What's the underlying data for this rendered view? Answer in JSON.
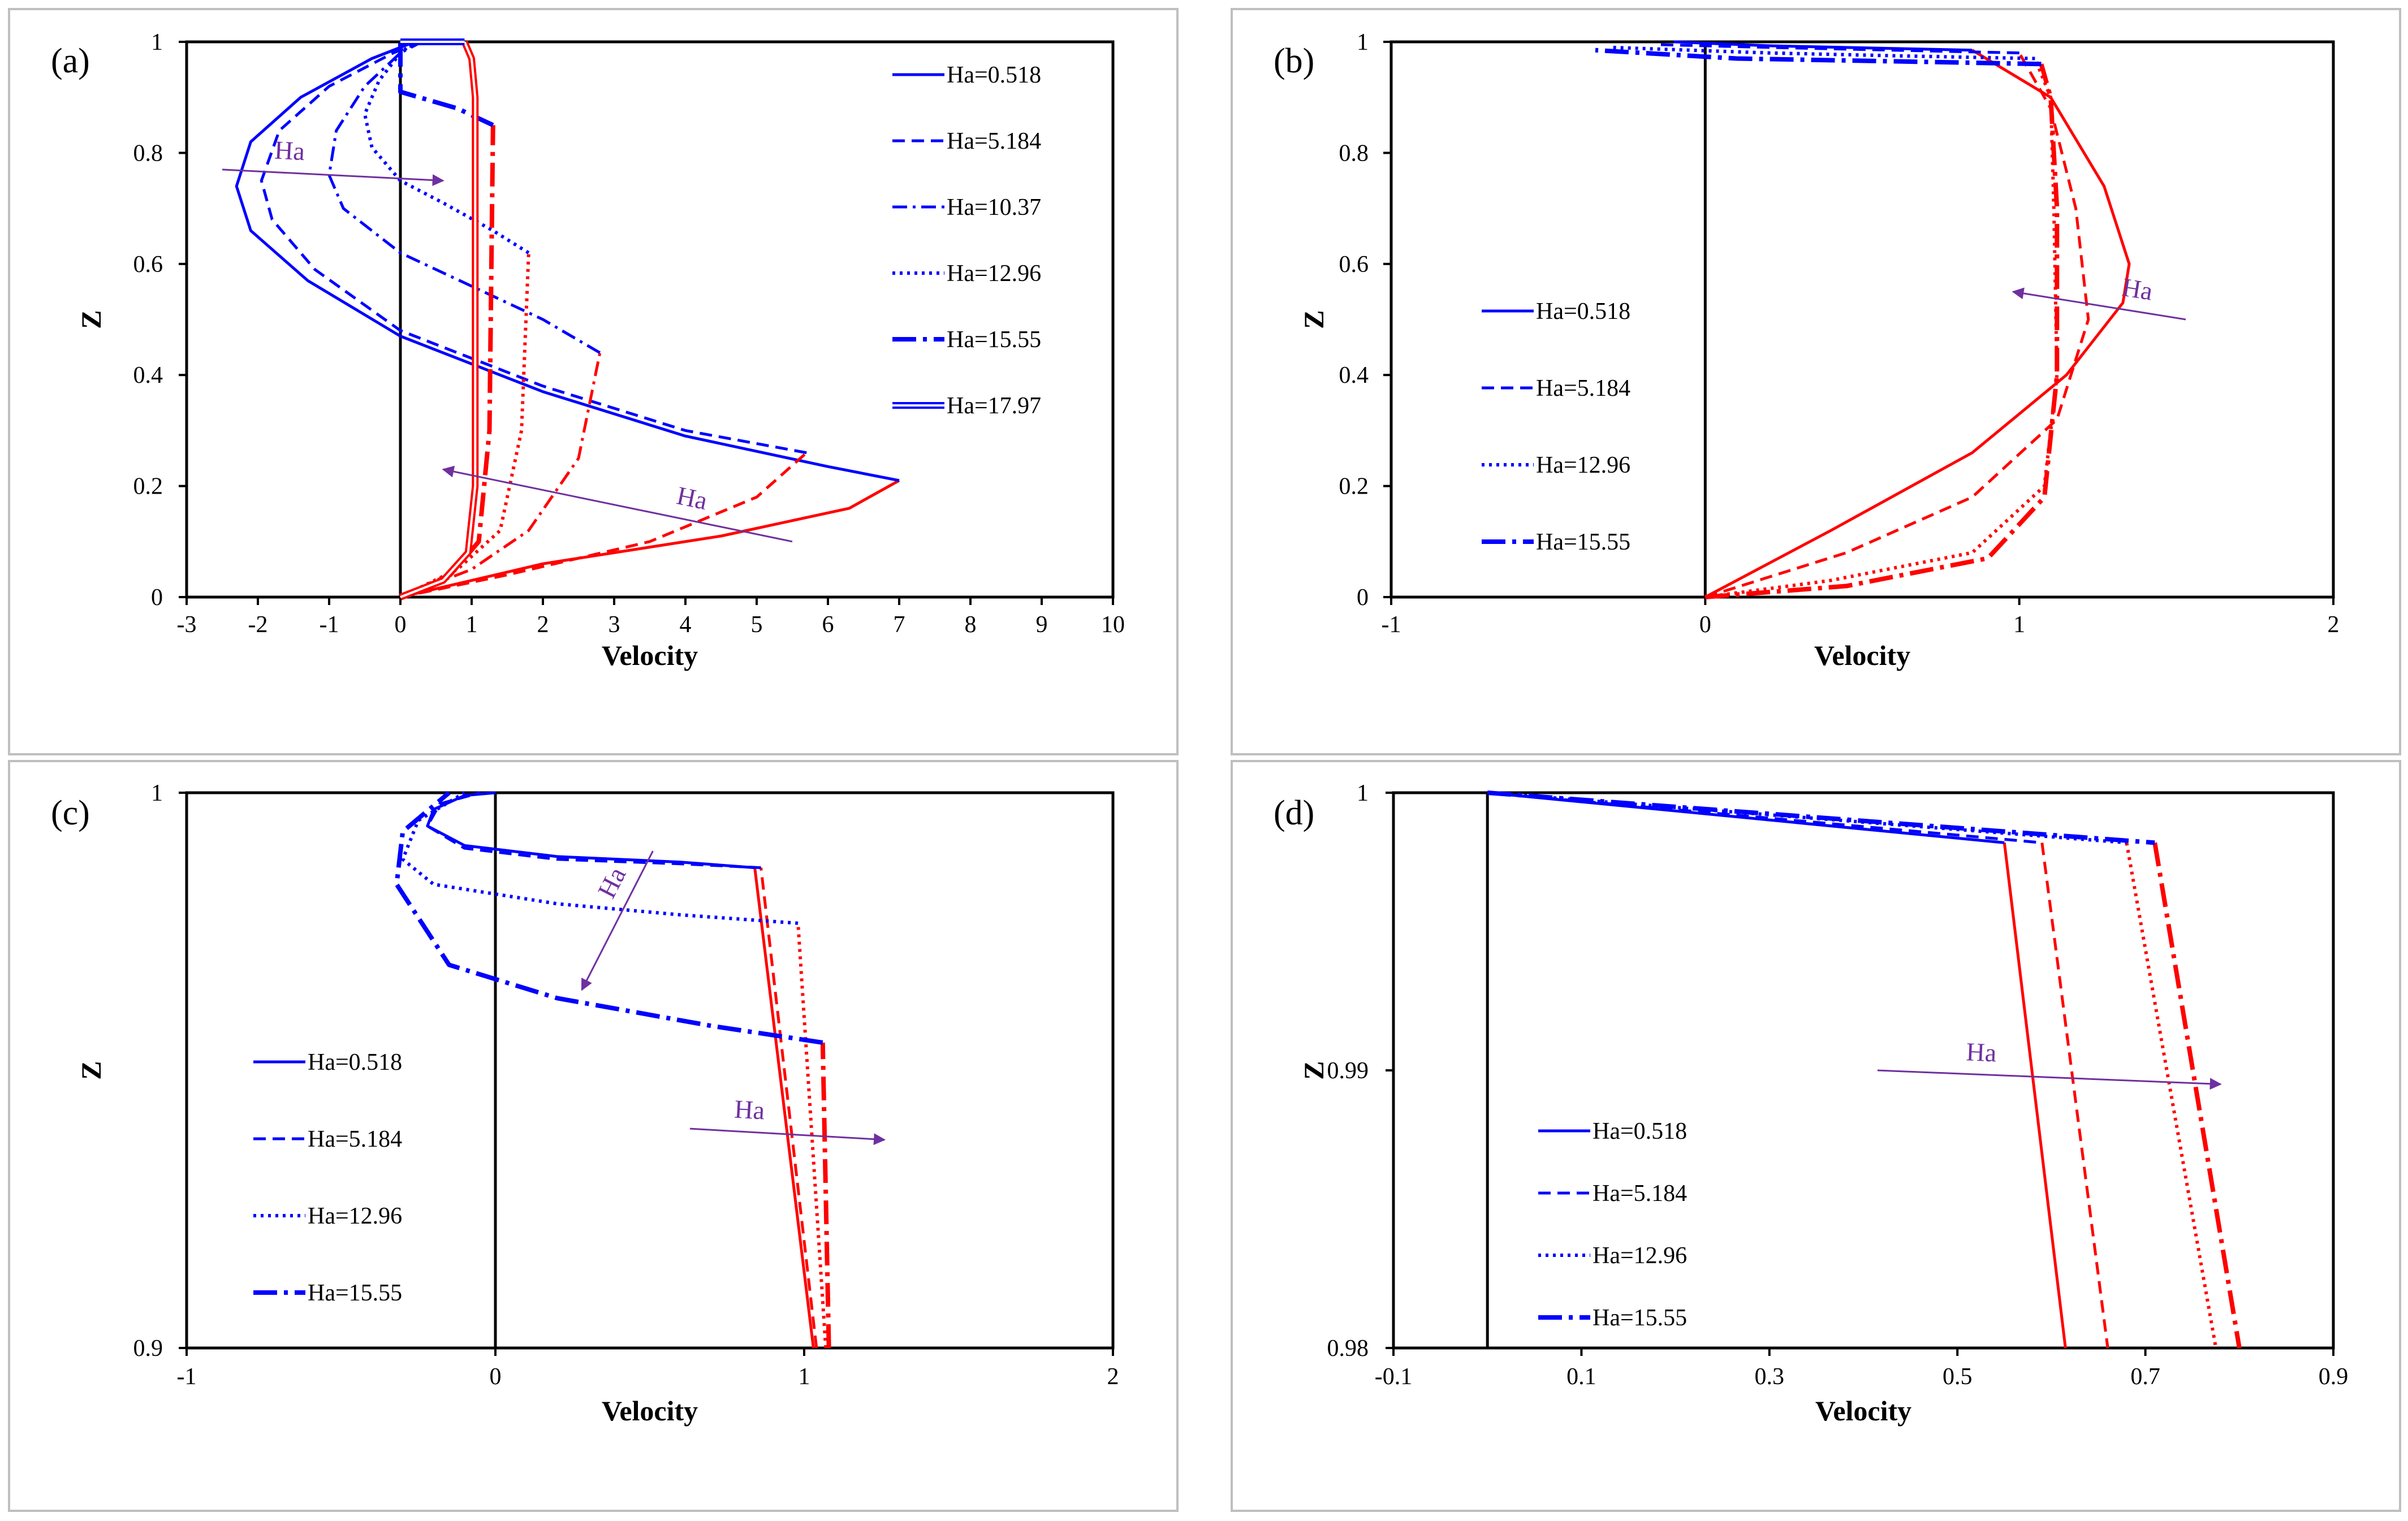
{
  "chart_data": [
    {
      "type": "line",
      "panel_label": "(a)",
      "xlabel": "Velocity",
      "ylabel": "Z",
      "xlim": [
        -3,
        10
      ],
      "ylim": [
        0,
        1
      ],
      "xticks": [
        "-3",
        "-2",
        "-1",
        "0",
        "1",
        "2",
        "3",
        "4",
        "5",
        "6",
        "7",
        "8",
        "9",
        "10"
      ],
      "yticks": [
        "0",
        "0.2",
        "0.4",
        "0.6",
        "0.8",
        "1"
      ],
      "legend_position": "top-right",
      "series": [
        {
          "name": "Ha=0.518",
          "style": "solid",
          "blue": {
            "x": [
              7.0,
              6.0,
              4.0,
              2.0,
              0.0,
              -1.3,
              -2.1,
              -2.3,
              -2.1,
              -1.4,
              -0.4,
              0.2
            ],
            "z": [
              0.21,
              0.235,
              0.29,
              0.37,
              0.47,
              0.57,
              0.66,
              0.74,
              0.82,
              0.9,
              0.97,
              1.0
            ]
          },
          "red": {
            "x": [
              0.0,
              2.0,
              4.5,
              6.3,
              7.0
            ],
            "z": [
              0.0,
              0.06,
              0.11,
              0.16,
              0.21
            ]
          }
        },
        {
          "name": "Ha=5.184",
          "style": "dash",
          "blue": {
            "x": [
              5.7,
              4.0,
              2.0,
              0.0,
              -1.2,
              -1.8,
              -1.95,
              -1.7,
              -1.0,
              -0.1,
              0.3
            ],
            "z": [
              0.26,
              0.3,
              0.38,
              0.48,
              0.59,
              0.68,
              0.75,
              0.84,
              0.92,
              0.98,
              1.0
            ]
          },
          "red": {
            "x": [
              0.0,
              1.5,
              3.5,
              5.0,
              5.7
            ],
            "z": [
              0.0,
              0.04,
              0.1,
              0.18,
              0.26
            ]
          }
        },
        {
          "name": "Ha=10.37",
          "style": "dashdot",
          "blue": {
            "x": [
              2.8,
              2.0,
              1.0,
              0.0,
              -0.8,
              -1.0,
              -0.9,
              -0.5,
              0.0,
              0.3
            ],
            "z": [
              0.44,
              0.5,
              0.56,
              0.62,
              0.7,
              0.76,
              0.84,
              0.92,
              0.98,
              1.0
            ]
          },
          "red": {
            "x": [
              0.0,
              1.0,
              1.8,
              2.5,
              2.8
            ],
            "z": [
              0.0,
              0.05,
              0.12,
              0.25,
              0.44
            ]
          }
        },
        {
          "name": "Ha=12.96",
          "style": "dot",
          "blue": {
            "x": [
              1.8,
              1.3,
              0.6,
              0.0,
              -0.4,
              -0.5,
              -0.3,
              0.0,
              0.2
            ],
            "z": [
              0.62,
              0.66,
              0.71,
              0.75,
              0.81,
              0.87,
              0.93,
              0.98,
              1.0
            ]
          },
          "red": {
            "x": [
              0.0,
              0.8,
              1.4,
              1.7,
              1.8
            ],
            "z": [
              0.0,
              0.05,
              0.12,
              0.3,
              0.62
            ]
          }
        },
        {
          "name": "Ha=15.55",
          "style": "longdashdot",
          "blue": {
            "x": [
              1.3,
              0.8,
              0.0,
              0.0
            ],
            "z": [
              0.85,
              0.88,
              0.91,
              1.0
            ]
          },
          "red": {
            "x": [
              0.0,
              0.7,
              1.1,
              1.25,
              1.3
            ],
            "z": [
              0.0,
              0.04,
              0.1,
              0.3,
              0.85
            ]
          }
        },
        {
          "name": "Ha=17.97",
          "style": "double",
          "blue": {
            "x": [
              0.0,
              0.3,
              0.6,
              0.9
            ],
            "z": [
              1.0,
              1.0,
              1.0,
              1.0
            ]
          },
          "red": {
            "x": [
              0.0,
              0.6,
              0.95,
              1.05,
              1.05,
              1.0,
              0.9
            ],
            "z": [
              0.0,
              0.03,
              0.08,
              0.2,
              0.9,
              0.97,
              1.0
            ]
          }
        }
      ],
      "annotations": [
        {
          "text": "Ha",
          "arrow": {
            "from": [
              -2.5,
              0.77
            ],
            "to": [
              0.6,
              0.75
            ]
          }
        },
        {
          "text": "Ha",
          "arrow": {
            "from": [
              5.5,
              0.1
            ],
            "to": [
              0.6,
              0.23
            ]
          }
        }
      ]
    },
    {
      "type": "line",
      "panel_label": "(b)",
      "xlabel": "Velocity",
      "ylabel": "Z",
      "xlim": [
        -1,
        2
      ],
      "ylim": [
        0,
        1
      ],
      "xticks": [
        "-1",
        "0",
        "1",
        "2"
      ],
      "yticks": [
        "0",
        "0.2",
        "0.4",
        "0.6",
        "0.8",
        "1"
      ],
      "legend_position": "middle-left",
      "series": [
        {
          "name": "Ha=0.518",
          "style": "solid",
          "blue": {
            "x": [
              0.85,
              0.6,
              0.2,
              -0.1
            ],
            "z": [
              0.985,
              0.988,
              0.993,
              1.0
            ]
          },
          "red": {
            "x": [
              0.0,
              0.4,
              0.85,
              1.15,
              1.33,
              1.35,
              1.27,
              1.1,
              0.85
            ],
            "z": [
              0.0,
              0.12,
              0.26,
              0.4,
              0.53,
              0.6,
              0.74,
              0.9,
              0.985
            ]
          }
        },
        {
          "name": "Ha=5.184",
          "style": "dash",
          "blue": {
            "x": [
              1.0,
              0.6,
              0.2,
              -0.15
            ],
            "z": [
              0.98,
              0.985,
              0.99,
              0.995
            ]
          },
          "red": {
            "x": [
              0.0,
              0.45,
              0.85,
              1.12,
              1.22,
              1.18,
              1.1,
              1.0
            ],
            "z": [
              0.0,
              0.08,
              0.18,
              0.32,
              0.5,
              0.7,
              0.88,
              0.98
            ]
          }
        },
        {
          "name": "Ha=12.96",
          "style": "dot",
          "blue": {
            "x": [
              1.05,
              0.6,
              0.2,
              -0.3
            ],
            "z": [
              0.97,
              0.975,
              0.98,
              0.99
            ]
          },
          "red": {
            "x": [
              0.0,
              0.4,
              0.85,
              1.08,
              1.12,
              1.11,
              1.1,
              1.05
            ],
            "z": [
              0.0,
              0.03,
              0.08,
              0.2,
              0.4,
              0.7,
              0.9,
              0.97
            ]
          }
        },
        {
          "name": "Ha=15.55",
          "style": "longdashdot",
          "blue": {
            "x": [
              1.07,
              0.6,
              0.1,
              -0.35
            ],
            "z": [
              0.96,
              0.965,
              0.97,
              0.985
            ]
          },
          "red": {
            "x": [
              0.0,
              0.45,
              0.9,
              1.08,
              1.12,
              1.12,
              1.1,
              1.07
            ],
            "z": [
              0.0,
              0.02,
              0.07,
              0.18,
              0.4,
              0.7,
              0.9,
              0.96
            ]
          }
        }
      ],
      "annotations": [
        {
          "text": "Ha",
          "arrow": {
            "from": [
              1.53,
              0.5
            ],
            "to": [
              0.98,
              0.55
            ]
          }
        }
      ]
    },
    {
      "type": "line",
      "panel_label": "(c)",
      "xlabel": "Velocity",
      "ylabel": "Z",
      "xlim": [
        -1,
        2
      ],
      "ylim": [
        0.9,
        1
      ],
      "xticks": [
        "-1",
        "0",
        "1",
        "2"
      ],
      "yticks": [
        "0.9",
        "1"
      ],
      "legend_position": "middle-left",
      "series": [
        {
          "name": "Ha=0.518",
          "style": "solid",
          "blue": {
            "x": [
              0.84,
              0.6,
              0.2,
              -0.1,
              -0.22,
              -0.2,
              -0.1,
              0.0
            ],
            "z": [
              0.9865,
              0.9875,
              0.9885,
              0.9905,
              0.994,
              0.997,
              0.9995,
              1.0
            ]
          },
          "red": {
            "x": [
              1.03,
              0.84
            ],
            "z": [
              0.9,
              0.9865
            ]
          }
        },
        {
          "name": "Ha=5.184",
          "style": "dash",
          "blue": {
            "x": [
              0.86,
              0.6,
              0.2,
              -0.1,
              -0.22,
              -0.18,
              -0.05
            ],
            "z": [
              0.9865,
              0.9872,
              0.988,
              0.99,
              0.994,
              0.998,
              1.0
            ]
          },
          "red": {
            "x": [
              1.04,
              0.86
            ],
            "z": [
              0.9,
              0.9865
            ]
          }
        },
        {
          "name": "Ha=12.96",
          "style": "dot",
          "blue": {
            "x": [
              0.98,
              0.6,
              0.2,
              -0.2,
              -0.3,
              -0.25,
              -0.1
            ],
            "z": [
              0.9765,
              0.978,
              0.98,
              0.9835,
              0.988,
              0.995,
              1.0
            ]
          },
          "red": {
            "x": [
              1.07,
              0.98
            ],
            "z": [
              0.9,
              0.9765
            ]
          }
        },
        {
          "name": "Ha=15.55",
          "style": "longdashdot",
          "blue": {
            "x": [
              1.06,
              0.7,
              0.2,
              -0.15,
              -0.32,
              -0.3,
              -0.15
            ],
            "z": [
              0.955,
              0.958,
              0.963,
              0.969,
              0.9835,
              0.993,
              1.0
            ]
          },
          "red": {
            "x": [
              1.08,
              1.06
            ],
            "z": [
              0.9,
              0.955
            ]
          }
        }
      ],
      "annotations": [
        {
          "text": "Ha",
          "arrow": {
            "from": [
              0.51,
              0.9895
            ],
            "to": [
              0.28,
              0.9645
            ]
          }
        },
        {
          "text": "Ha",
          "arrow": {
            "from": [
              0.63,
              0.9395
            ],
            "to": [
              1.26,
              0.9375
            ]
          }
        }
      ]
    },
    {
      "type": "line",
      "panel_label": "(d)",
      "xlabel": "Velocity",
      "ylabel": "Z",
      "xlim": [
        -0.1,
        0.9
      ],
      "ylim": [
        0.98,
        1
      ],
      "xticks": [
        "-0.1",
        "0.1",
        "0.3",
        "0.5",
        "0.7",
        "0.9"
      ],
      "yticks": [
        "0.98",
        "0.99",
        "1"
      ],
      "legend_position": "bottom-left",
      "series": [
        {
          "name": "Ha=0.518",
          "style": "solid",
          "blue": {
            "x": [
              0.0,
              0.55
            ],
            "z": [
              1.0,
              0.9982
            ]
          },
          "red": {
            "x": [
              0.55,
              0.615
            ],
            "z": [
              0.9982,
              0.98
            ]
          }
        },
        {
          "name": "Ha=5.184",
          "style": "dash",
          "blue": {
            "x": [
              0.0,
              0.59
            ],
            "z": [
              1.0,
              0.9982
            ]
          },
          "red": {
            "x": [
              0.59,
              0.66
            ],
            "z": [
              0.9982,
              0.98
            ]
          }
        },
        {
          "name": "Ha=12.96",
          "style": "dot",
          "blue": {
            "x": [
              0.0,
              0.68
            ],
            "z": [
              1.0,
              0.9982
            ]
          },
          "red": {
            "x": [
              0.68,
              0.775
            ],
            "z": [
              0.9982,
              0.98
            ]
          }
        },
        {
          "name": "Ha=15.55",
          "style": "longdashdot",
          "blue": {
            "x": [
              0.0,
              0.71
            ],
            "z": [
              1.0,
              0.9982
            ]
          },
          "red": {
            "x": [
              0.71,
              0.8
            ],
            "z": [
              0.9982,
              0.98
            ]
          }
        }
      ],
      "annotations": [
        {
          "text": "Ha",
          "arrow": {
            "from": [
              0.415,
              0.99
            ],
            "to": [
              0.78,
              0.9895
            ]
          }
        }
      ]
    }
  ],
  "colors": {
    "blue": "#0000ff",
    "red": "#ff0000",
    "axis": "#000000",
    "arrow": "#7030a0",
    "panel_border": "#bfbfbf"
  }
}
